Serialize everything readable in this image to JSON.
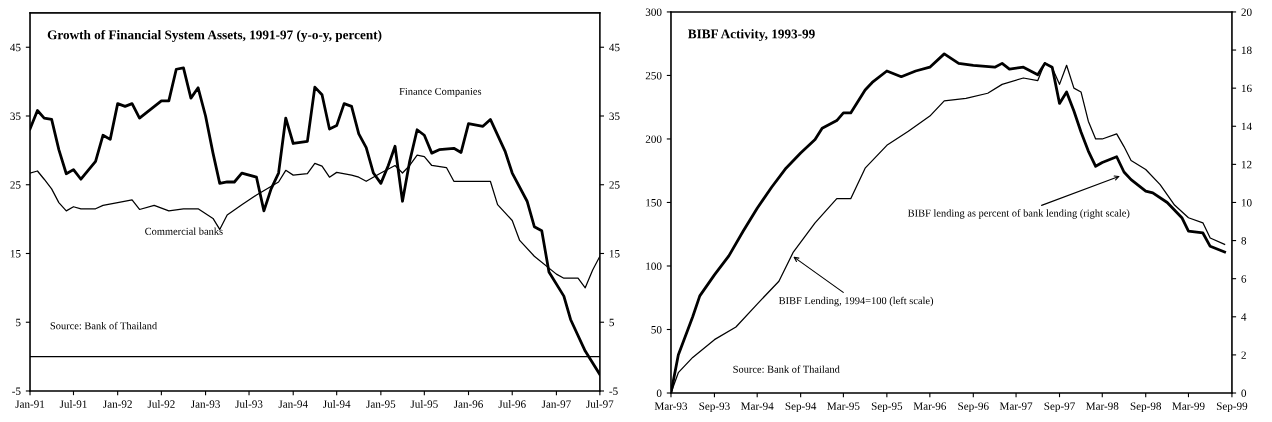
{
  "chart_data": [
    {
      "type": "line",
      "title": "Growth of Financial System Assets, 1991-97 (y-o-y, percent)",
      "series": [
        {
          "name": "Finance Companies",
          "color": "#000000",
          "x": [
            "1991-01",
            "1991-02",
            "1991-03",
            "1991-04",
            "1991-05",
            "1991-06",
            "1991-07",
            "1991-08",
            "1991-10",
            "1991-11",
            "1991-12",
            "1992-01",
            "1992-02",
            "1992-03",
            "1992-04",
            "1992-07",
            "1992-08",
            "1992-09",
            "1992-10",
            "1992-11",
            "1992-12",
            "1993-01",
            "1993-02",
            "1993-03",
            "1993-04",
            "1993-05",
            "1993-06",
            "1993-08",
            "1993-09",
            "1993-10",
            "1993-11",
            "1993-12",
            "1994-01",
            "1994-03",
            "1994-04",
            "1994-05",
            "1994-06",
            "1994-07",
            "1994-08",
            "1994-09",
            "1994-10",
            "1994-11",
            "1994-12",
            "1995-01",
            "1995-02",
            "1995-03",
            "1995-04",
            "1995-05",
            "1995-06",
            "1995-07",
            "1995-08",
            "1995-09",
            "1995-11",
            "1995-12",
            "1996-01",
            "1996-03",
            "1996-04",
            "1996-06",
            "1996-07",
            "1996-09",
            "1996-10",
            "1996-11",
            "1996-12",
            "1997-02",
            "1997-03",
            "1997-05",
            "1997-07"
          ],
          "values": [
            33.1,
            35.8,
            34.7,
            34.5,
            30.1,
            26.6,
            27.2,
            25.8,
            28.4,
            32.2,
            31.6,
            36.8,
            36.4,
            36.8,
            34.7,
            37.2,
            37.2,
            41.8,
            42.0,
            37.6,
            39.1,
            35.0,
            29.6,
            25.2,
            25.4,
            25.4,
            26.7,
            26.1,
            21.2,
            24.4,
            26.7,
            34.7,
            31.0,
            31.3,
            39.2,
            38.1,
            33.1,
            33.6,
            36.8,
            36.4,
            32.4,
            30.4,
            26.7,
            25.2,
            27.8,
            30.6,
            22.6,
            28.4,
            33.0,
            32.2,
            29.6,
            30.1,
            30.3,
            29.7,
            33.9,
            33.5,
            34.5,
            29.9,
            26.7,
            22.6,
            18.9,
            18.3,
            12.3,
            8.8,
            5.4,
            0.8,
            -2.6
          ]
        },
        {
          "name": "Commercial banks",
          "color": "#000000",
          "x": [
            "1991-01",
            "1991-02",
            "1991-03",
            "1991-04",
            "1991-05",
            "1991-06",
            "1991-07",
            "1991-08",
            "1991-10",
            "1991-11",
            "1992-01",
            "1992-03",
            "1992-04",
            "1992-06",
            "1992-08",
            "1992-10",
            "1992-12",
            "1993-02",
            "1993-03",
            "1993-04",
            "1993-06",
            "1993-08",
            "1993-11",
            "1993-12",
            "1994-01",
            "1994-03",
            "1994-04",
            "1994-05",
            "1994-06",
            "1994-07",
            "1994-09",
            "1994-10",
            "1994-11",
            "1995-01",
            "1995-03",
            "1995-04",
            "1995-05",
            "1995-06",
            "1995-07",
            "1995-08",
            "1995-10",
            "1995-11",
            "1996-01",
            "1996-04",
            "1996-05",
            "1996-07",
            "1996-08",
            "1996-10",
            "1997-01",
            "1997-02",
            "1997-04",
            "1997-05",
            "1997-06",
            "1997-07"
          ],
          "values": [
            26.7,
            27.0,
            25.8,
            24.4,
            22.4,
            21.2,
            21.8,
            21.5,
            21.5,
            22.0,
            22.4,
            22.8,
            21.4,
            22.0,
            21.2,
            21.5,
            21.5,
            20.1,
            18.5,
            20.6,
            22.1,
            23.5,
            25.4,
            27.1,
            26.4,
            26.6,
            28.1,
            27.7,
            26.1,
            26.8,
            26.4,
            26.1,
            25.5,
            26.7,
            27.8,
            26.7,
            27.8,
            29.3,
            29.1,
            27.8,
            27.5,
            25.5,
            25.5,
            25.5,
            22.1,
            19.8,
            16.9,
            14.6,
            12.0,
            11.4,
            11.4,
            10.0,
            12.6,
            14.6
          ]
        }
      ],
      "xlim": [
        "1991-01",
        "1997-07"
      ],
      "xticks": [
        {
          "value": "1991-01",
          "label": "Jan-91"
        },
        {
          "value": "1991-07",
          "label": "Jul-91"
        },
        {
          "value": "1992-01",
          "label": "Jan-92"
        },
        {
          "value": "1992-07",
          "label": "Jul-92"
        },
        {
          "value": "1993-01",
          "label": "Jan-93"
        },
        {
          "value": "1993-07",
          "label": "Jul-93"
        },
        {
          "value": "1994-01",
          "label": "Jan-94"
        },
        {
          "value": "1994-07",
          "label": "Jul-94"
        },
        {
          "value": "1995-01",
          "label": "Jan-95"
        },
        {
          "value": "1995-07",
          "label": "Jul-95"
        },
        {
          "value": "1996-01",
          "label": "Jan-96"
        },
        {
          "value": "1996-07",
          "label": "Jul-96"
        },
        {
          "value": "1997-01",
          "label": "Jan-97"
        },
        {
          "value": "1997-07",
          "label": "Jul-97"
        }
      ],
      "ylim": [
        -5,
        50
      ],
      "yticks": [
        -5,
        5,
        15,
        25,
        35,
        45
      ],
      "y2lim": [
        -5,
        50
      ],
      "y2ticks": [
        -5,
        5,
        15,
        25,
        35,
        45
      ],
      "ref_lines": [
        {
          "axis": "y",
          "value": 0
        }
      ],
      "annotations": [
        "Source: Bank of Thailand"
      ],
      "grid": false,
      "legend": false
    },
    {
      "type": "line",
      "title": "BIBF Activity, 1993-99",
      "series": [
        {
          "name": "BIBF Lending, 1994=100 (left scale)",
          "color": "#000000",
          "x": [
            "1993-03",
            "1993-04",
            "1993-06",
            "1993-09",
            "1993-12",
            "1994-03",
            "1994-06",
            "1994-08",
            "1994-11",
            "1995-02",
            "1995-04",
            "1995-06",
            "1995-09",
            "1995-12",
            "1996-03",
            "1996-05",
            "1996-08",
            "1996-11",
            "1997-01",
            "1997-04",
            "1997-06",
            "1997-07",
            "1997-08",
            "1997-09",
            "1997-10",
            "1997-11",
            "1997-12",
            "1998-01",
            "1998-02",
            "1998-03",
            "1998-05",
            "1998-06",
            "1998-07",
            "1998-09",
            "1998-11",
            "1999-01",
            "1999-03",
            "1999-05",
            "1999-06",
            "1999-08"
          ],
          "values": [
            0,
            16,
            28,
            42,
            52,
            70,
            88,
            111,
            134,
            153,
            153,
            177,
            195,
            206,
            218,
            230,
            232,
            236,
            243,
            248,
            246,
            260,
            256,
            243,
            258,
            240,
            237,
            214,
            200,
            200,
            204,
            194,
            183,
            176,
            164,
            148,
            138,
            134,
            122,
            117
          ]
        },
        {
          "name": "BIBF lending as percent of bank lending (right scale)",
          "color": "#000000",
          "axis": "y2",
          "x": [
            "1993-03",
            "1993-04",
            "1993-06",
            "1993-07",
            "1993-09",
            "1993-11",
            "1994-01",
            "1994-03",
            "1994-05",
            "1994-07",
            "1994-09",
            "1994-11",
            "1994-12",
            "1995-02",
            "1995-03",
            "1995-04",
            "1995-06",
            "1995-07",
            "1995-09",
            "1995-11",
            "1996-01",
            "1996-03",
            "1996-05",
            "1996-07",
            "1996-09",
            "1996-12",
            "1997-01",
            "1997-02",
            "1997-04",
            "1997-06",
            "1997-07",
            "1997-08",
            "1997-09",
            "1997-10",
            "1997-11",
            "1997-12",
            "1998-01",
            "1998-02",
            "1998-03",
            "1998-05",
            "1998-06",
            "1998-07",
            "1998-09",
            "1998-10",
            "1998-12",
            "1999-02",
            "1999-03",
            "1999-05",
            "1999-06",
            "1999-08"
          ],
          "values": [
            0,
            2.0,
            4.0,
            5.1,
            6.2,
            7.2,
            8.5,
            9.7,
            10.8,
            11.8,
            12.6,
            13.3,
            13.9,
            14.3,
            14.7,
            14.7,
            15.9,
            16.3,
            16.9,
            16.6,
            16.9,
            17.1,
            17.8,
            17.3,
            17.2,
            17.1,
            17.3,
            17.0,
            17.1,
            16.7,
            17.3,
            17.1,
            15.2,
            15.8,
            14.8,
            13.7,
            12.7,
            11.9,
            12.1,
            12.4,
            11.6,
            11.2,
            10.6,
            10.5,
            10.0,
            9.2,
            8.5,
            8.4,
            7.7,
            7.4
          ]
        }
      ],
      "xlim": [
        "1993-03",
        "1999-09"
      ],
      "xticks": [
        {
          "value": "1993-03",
          "label": "Mar-93"
        },
        {
          "value": "1993-09",
          "label": "Sep-93"
        },
        {
          "value": "1994-03",
          "label": "Mar-94"
        },
        {
          "value": "1994-09",
          "label": "Sep-94"
        },
        {
          "value": "1995-03",
          "label": "Mar-95"
        },
        {
          "value": "1995-09",
          "label": "Sep-95"
        },
        {
          "value": "1996-03",
          "label": "Mar-96"
        },
        {
          "value": "1996-09",
          "label": "Sep-96"
        },
        {
          "value": "1997-03",
          "label": "Mar-97"
        },
        {
          "value": "1997-09",
          "label": "Sep-97"
        },
        {
          "value": "1998-03",
          "label": "Mar-98"
        },
        {
          "value": "1998-09",
          "label": "Sep-98"
        },
        {
          "value": "1999-03",
          "label": "Mar-99"
        },
        {
          "value": "1999-09",
          "label": "Sep-99"
        }
      ],
      "ylim": [
        0,
        300
      ],
      "yticks": [
        0,
        50,
        100,
        150,
        200,
        250,
        300
      ],
      "y2lim": [
        0,
        20
      ],
      "y2ticks": [
        0,
        2,
        4,
        6,
        8,
        10,
        12,
        14,
        16,
        18,
        20
      ],
      "annotations": [
        "Source: Bank of Thailand"
      ],
      "grid": false,
      "legend": false
    }
  ]
}
